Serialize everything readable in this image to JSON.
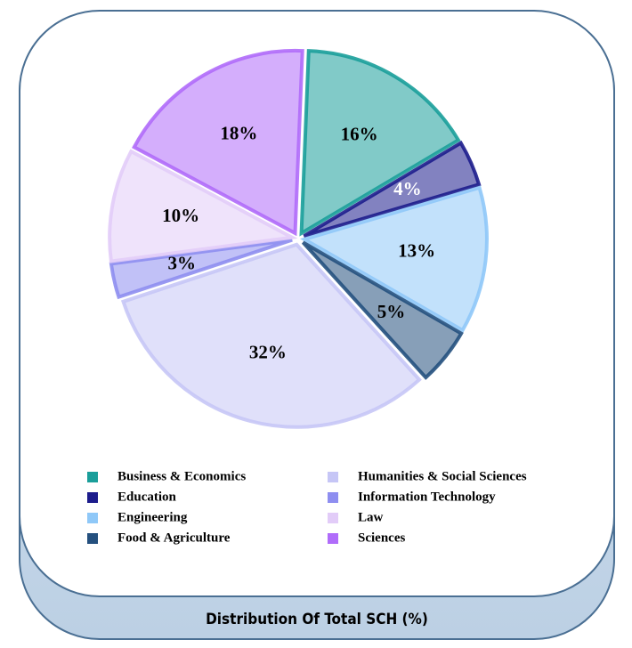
{
  "chart_data": {
    "type": "pie",
    "title": "Distribution Of Total SCH (%)",
    "categories": [
      "Business & Economics",
      "Education",
      "Engineering",
      "Food & Agriculture",
      "Humanities & Social Sciences",
      "Information Technology",
      "Law",
      "Sciences"
    ],
    "values": [
      16,
      4,
      13,
      5,
      32,
      3,
      10,
      18
    ],
    "value_labels": [
      "16%",
      "4%",
      "13%",
      "5%",
      "32%",
      "3%",
      "10%",
      "18%"
    ],
    "colors": [
      "#1a9e9a",
      "#1c1c8c",
      "#8fc8f8",
      "#24507e",
      "#c6c6f6",
      "#8e8ef0",
      "#e2ccf8",
      "#b06cfa"
    ],
    "legend": "bottom"
  }
}
